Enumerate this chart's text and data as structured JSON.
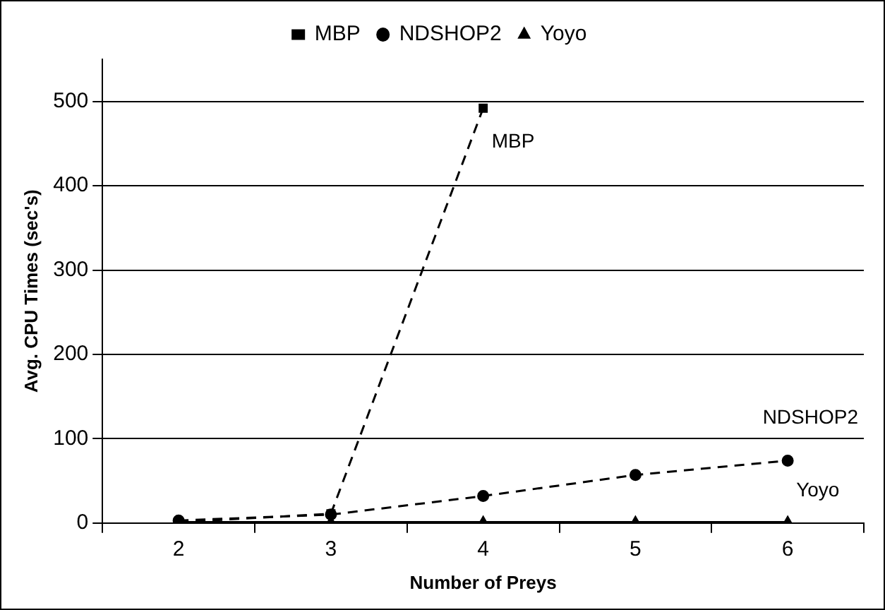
{
  "chart_data": {
    "type": "line",
    "xlabel": "Number of Preys",
    "ylabel": "Avg. CPU Times (sec's)",
    "categories": [
      "2",
      "3",
      "4",
      "5",
      "6"
    ],
    "series": [
      {
        "name": "MBP",
        "color": "#000000",
        "marker": "square",
        "line_style": "dashed",
        "values": [
          1,
          11,
          492,
          null,
          null
        ]
      },
      {
        "name": "NDSHOP2",
        "color": "#000000",
        "marker": "circle",
        "line_style": "dashed",
        "values": [
          3,
          10,
          32,
          57,
          74
        ]
      },
      {
        "name": "Yoyo",
        "color": "#000000",
        "marker": "triangle",
        "line_style": "solid",
        "values": [
          1,
          1,
          1,
          1,
          1
        ]
      }
    ],
    "ylim": [
      0,
      550
    ],
    "yticks": [
      0,
      100,
      200,
      300,
      400,
      500
    ],
    "grid": "y",
    "legend": "top"
  }
}
